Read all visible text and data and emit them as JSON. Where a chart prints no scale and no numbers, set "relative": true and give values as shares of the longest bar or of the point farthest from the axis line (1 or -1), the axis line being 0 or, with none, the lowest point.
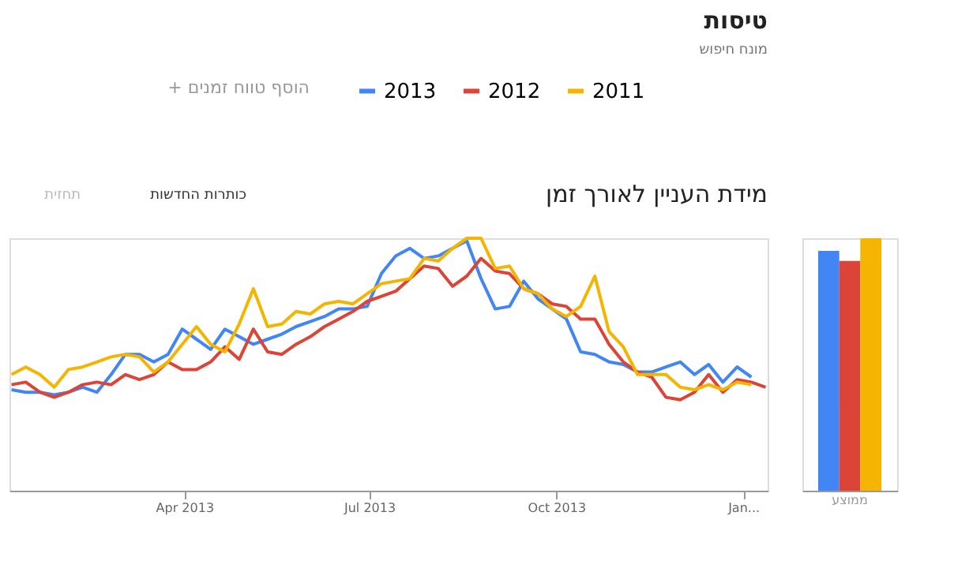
{
  "chart_data": [
    {
      "type": "line",
      "title": "מידת העניין לאורך זמן",
      "subtitle": "טיסות",
      "annotations": [
        "מונח חיפוש",
        "+ הוסף טווח זמנים",
        "כותרות החדשות",
        "תחזית"
      ],
      "relative": true,
      "legend": "top",
      "x": [
        "2013-01-06",
        "2013-01-13",
        "2013-01-20",
        "2013-01-27",
        "2013-02-03",
        "2013-02-10",
        "2013-02-17",
        "2013-02-24",
        "2013-03-03",
        "2013-03-10",
        "2013-03-17",
        "2013-03-24",
        "2013-03-31",
        "2013-04-07",
        "2013-04-14",
        "2013-04-21",
        "2013-04-28",
        "2013-05-05",
        "2013-05-12",
        "2013-05-19",
        "2013-05-26",
        "2013-06-02",
        "2013-06-09",
        "2013-06-16",
        "2013-06-23",
        "2013-06-30",
        "2013-07-07",
        "2013-07-14",
        "2013-07-21",
        "2013-07-28",
        "2013-08-04",
        "2013-08-11",
        "2013-08-18",
        "2013-08-25",
        "2013-09-01",
        "2013-09-08",
        "2013-09-15",
        "2013-09-22",
        "2013-09-29",
        "2013-10-06",
        "2013-10-13",
        "2013-10-20",
        "2013-10-27",
        "2013-11-03",
        "2013-11-10",
        "2013-11-17",
        "2013-11-24",
        "2013-12-01",
        "2013-12-08",
        "2013-12-15",
        "2013-12-22",
        "2013-12-29",
        "2014-01-05",
        "2014-01-12"
      ],
      "xlim": [
        "2013-01-05",
        "2014-01-13"
      ],
      "xticks": [
        {
          "value": "2013-04-01",
          "label": "Apr 2013"
        },
        {
          "value": "2013-07-01",
          "label": "Jul 2013"
        },
        {
          "value": "2013-10-01",
          "label": "Oct 2013"
        },
        {
          "value": "2014-01-01",
          "label": "Jan..."
        }
      ],
      "series": [
        {
          "name": "2013",
          "color": "#4285f4",
          "values": [
            0.4,
            0.39,
            0.39,
            0.38,
            0.39,
            0.41,
            0.39,
            0.46,
            0.54,
            0.54,
            0.51,
            0.54,
            0.64,
            0.6,
            0.56,
            0.64,
            0.61,
            0.58,
            0.6,
            0.62,
            0.65,
            0.67,
            0.69,
            0.72,
            0.72,
            0.73,
            0.86,
            0.93,
            0.96,
            0.92,
            0.93,
            0.96,
            0.99,
            0.84,
            0.72,
            0.73,
            0.83,
            0.76,
            0.72,
            0.68,
            0.55,
            0.54,
            0.51,
            0.5,
            0.47,
            0.47,
            0.49,
            0.51,
            0.46,
            0.5,
            0.43,
            0.49,
            0.45,
            null
          ]
        },
        {
          "name": "2012",
          "color": "#db4437",
          "values": [
            0.42,
            0.43,
            0.39,
            0.37,
            0.39,
            0.42,
            0.43,
            0.42,
            0.46,
            0.44,
            0.46,
            0.51,
            0.48,
            0.48,
            0.51,
            0.57,
            0.52,
            0.64,
            0.55,
            0.54,
            0.58,
            0.61,
            0.65,
            0.68,
            0.71,
            0.75,
            0.77,
            0.79,
            0.84,
            0.89,
            0.88,
            0.81,
            0.85,
            0.92,
            0.87,
            0.86,
            0.8,
            0.78,
            0.74,
            0.73,
            0.68,
            0.68,
            0.58,
            0.51,
            0.47,
            0.45,
            0.37,
            0.36,
            0.39,
            0.46,
            0.39,
            0.44,
            0.43,
            0.41
          ]
        },
        {
          "name": "2011",
          "color": "#f4b400",
          "values": [
            0.46,
            0.49,
            0.46,
            0.41,
            0.48,
            0.49,
            0.51,
            0.53,
            0.54,
            0.53,
            0.47,
            0.51,
            0.58,
            0.65,
            0.58,
            0.55,
            0.66,
            0.8,
            0.65,
            0.66,
            0.71,
            0.7,
            0.74,
            0.75,
            0.74,
            0.78,
            0.82,
            0.83,
            0.84,
            0.92,
            0.91,
            0.96,
            1,
            1,
            0.88,
            0.89,
            0.8,
            0.78,
            0.72,
            0.69,
            0.73,
            0.85,
            0.63,
            0.57,
            0.46,
            0.46,
            0.46,
            0.41,
            0.4,
            0.42,
            0.4,
            0.43,
            0.42,
            null
          ]
        }
      ]
    },
    {
      "type": "bar",
      "relative": true,
      "categories": [
        "ממוצע"
      ],
      "series": [
        {
          "color": "#4285f4",
          "values": [
            0.95
          ]
        },
        {
          "color": "#db4437",
          "values": [
            0.91
          ]
        },
        {
          "color": "#f4b400",
          "values": [
            1
          ]
        }
      ]
    }
  ]
}
